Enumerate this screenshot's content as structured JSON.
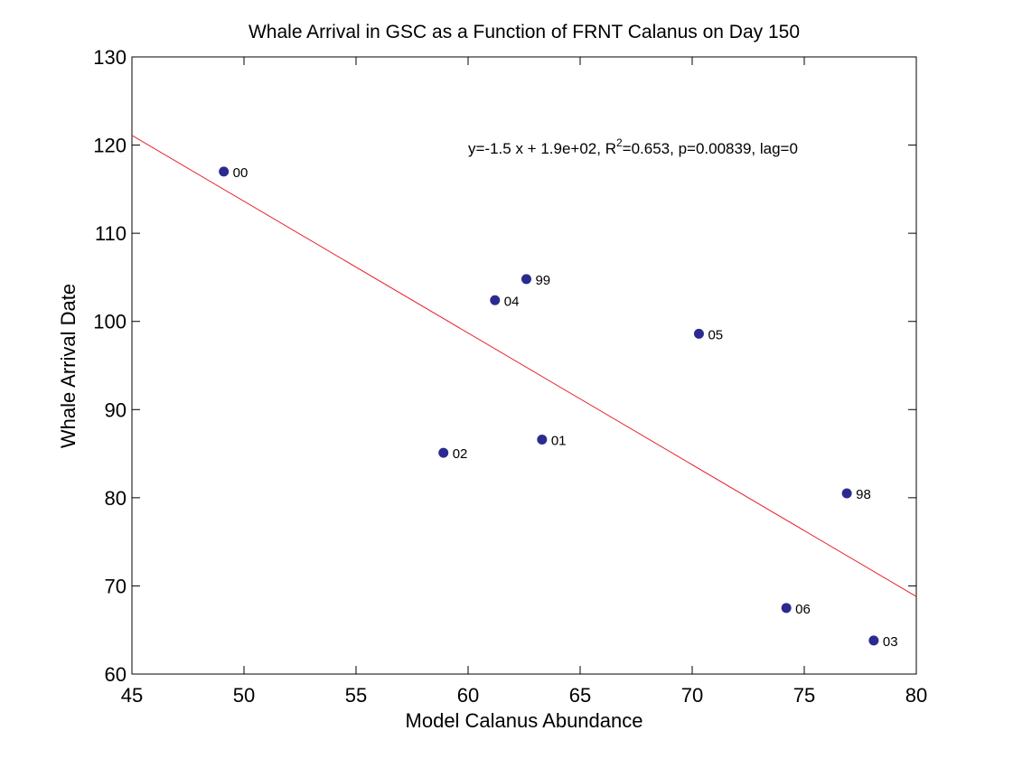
{
  "chart_data": {
    "type": "scatter",
    "title": "Whale Arrival in GSC as a Function of FRNT Calanus on Day 150",
    "xlabel": "Model Calanus Abundance",
    "ylabel": "Whale Arrival Date",
    "xlim": [
      45,
      80
    ],
    "ylim": [
      60,
      130
    ],
    "xticks": [
      45,
      50,
      55,
      60,
      65,
      70,
      75,
      80
    ],
    "yticks": [
      60,
      70,
      80,
      90,
      100,
      110,
      120,
      130
    ],
    "grid": false,
    "annotation": {
      "prefix": "y=-1.5 x + 1.9e+02, R",
      "superscript": "2",
      "suffix": "=0.653, p=0.00839, lag=0"
    },
    "points": [
      {
        "label": "00",
        "x": 49.1,
        "y": 117.0
      },
      {
        "label": "99",
        "x": 62.6,
        "y": 104.8
      },
      {
        "label": "04",
        "x": 61.2,
        "y": 102.4
      },
      {
        "label": "05",
        "x": 70.3,
        "y": 98.6
      },
      {
        "label": "01",
        "x": 63.3,
        "y": 86.6
      },
      {
        "label": "02",
        "x": 58.9,
        "y": 85.1
      },
      {
        "label": "98",
        "x": 76.9,
        "y": 80.5
      },
      {
        "label": "06",
        "x": 74.2,
        "y": 67.5
      },
      {
        "label": "03",
        "x": 78.1,
        "y": 63.8
      }
    ],
    "fit_line": {
      "x": [
        45,
        80
      ],
      "y": [
        121.1,
        68.8
      ]
    },
    "colors": {
      "points": "#2b2b8f",
      "fit_line": "#e8242b",
      "axes": "#000000"
    }
  }
}
